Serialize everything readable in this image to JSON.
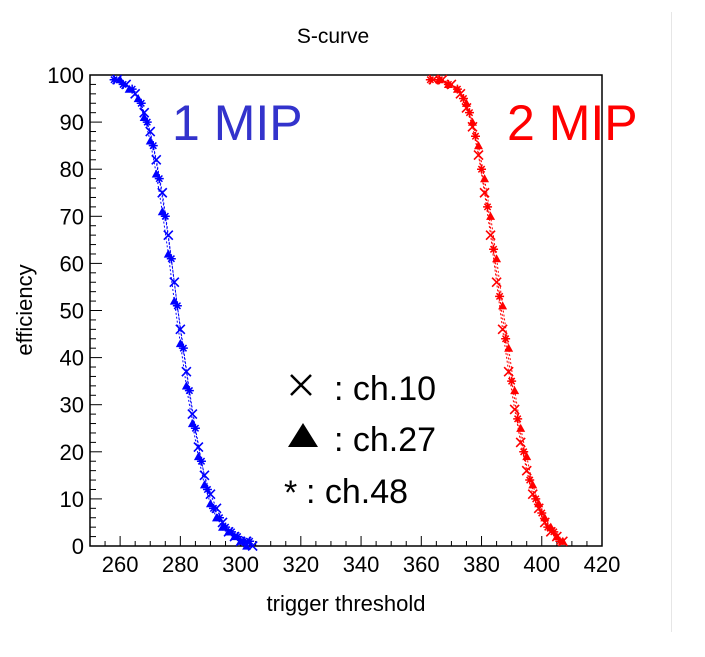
{
  "chart_data": {
    "type": "scatter",
    "title": "S-curve",
    "xlabel": "trigger threshold",
    "ylabel": "efficiency",
    "xlim": [
      250,
      420
    ],
    "ylim": [
      0,
      100
    ],
    "x_ticks": [
      260,
      280,
      300,
      320,
      340,
      360,
      380,
      400,
      420
    ],
    "y_ticks": [
      0,
      10,
      20,
      30,
      40,
      50,
      60,
      70,
      80,
      90,
      100
    ],
    "grid": false,
    "annotations": [
      {
        "text": "1 MIP",
        "color": "#3333cc"
      },
      {
        "text": "2 MIP",
        "color": "#ff0000"
      }
    ],
    "legend": {
      "placement": "center",
      "entries": [
        {
          "marker": "x",
          "label": ": ch.10"
        },
        {
          "marker": "triangle",
          "label": ": ch.27"
        },
        {
          "marker": "star",
          "label": ": ch.48"
        }
      ]
    },
    "series": [
      {
        "group": "1 MIP",
        "channel": "ch.10",
        "marker": "x",
        "color": "#0000ff",
        "x": [
          259,
          262,
          265,
          268,
          270,
          272,
          274,
          276,
          278,
          280,
          282,
          284,
          286,
          288,
          290,
          292,
          294,
          296,
          298,
          300,
          302,
          304
        ],
        "y": [
          99,
          98,
          96,
          92,
          88,
          82,
          75,
          66,
          56,
          46,
          37,
          28,
          21,
          15,
          11,
          8,
          5,
          3,
          2,
          1,
          1,
          0
        ]
      },
      {
        "group": "1 MIP",
        "channel": "ch.27",
        "marker": "triangle",
        "color": "#0000ff",
        "x": [
          260,
          263,
          266,
          268,
          270,
          272,
          274,
          276,
          278,
          280,
          282,
          284,
          286,
          288,
          290,
          292,
          294,
          296,
          298,
          300,
          302
        ],
        "y": [
          99,
          97,
          95,
          91,
          86,
          79,
          71,
          62,
          52,
          43,
          34,
          26,
          19,
          13,
          9,
          6,
          4,
          3,
          2,
          1,
          0
        ]
      },
      {
        "group": "1 MIP",
        "channel": "ch.48",
        "marker": "star",
        "color": "#0000ff",
        "x": [
          258,
          261,
          264,
          267,
          269,
          271,
          273,
          275,
          277,
          279,
          281,
          283,
          285,
          287,
          289,
          291,
          293,
          295,
          297,
          299,
          301,
          303
        ],
        "y": [
          99,
          98,
          97,
          94,
          90,
          85,
          78,
          70,
          61,
          51,
          42,
          33,
          25,
          18,
          12,
          8,
          6,
          4,
          3,
          2,
          1,
          1
        ]
      },
      {
        "group": "2 MIP",
        "channel": "ch.10",
        "marker": "x",
        "color": "#ff0000",
        "x": [
          364,
          367,
          370,
          373,
          375,
          377,
          379,
          381,
          383,
          385,
          387,
          389,
          391,
          393,
          395,
          397,
          399,
          401,
          403,
          405,
          407
        ],
        "y": [
          99,
          99,
          98,
          96,
          93,
          89,
          83,
          75,
          66,
          56,
          46,
          37,
          29,
          22,
          16,
          11,
          8,
          5,
          3,
          2,
          1
        ]
      },
      {
        "group": "2 MIP",
        "channel": "ch.27",
        "marker": "triangle",
        "color": "#ff0000",
        "x": [
          366,
          369,
          372,
          375,
          377,
          379,
          381,
          383,
          385,
          387,
          389,
          391,
          393,
          395,
          397,
          399,
          401,
          403,
          405,
          407
        ],
        "y": [
          99,
          98,
          97,
          94,
          90,
          85,
          78,
          70,
          61,
          51,
          42,
          33,
          25,
          19,
          13,
          9,
          6,
          4,
          2,
          1
        ]
      },
      {
        "group": "2 MIP",
        "channel": "ch.48",
        "marker": "star",
        "color": "#ff0000",
        "x": [
          363,
          366,
          369,
          372,
          374,
          376,
          378,
          380,
          382,
          384,
          386,
          388,
          390,
          392,
          394,
          396,
          398,
          400,
          402,
          404,
          406
        ],
        "y": [
          99,
          99,
          98,
          97,
          95,
          92,
          87,
          80,
          72,
          63,
          53,
          44,
          35,
          27,
          20,
          14,
          10,
          7,
          4,
          3,
          1
        ]
      }
    ]
  }
}
